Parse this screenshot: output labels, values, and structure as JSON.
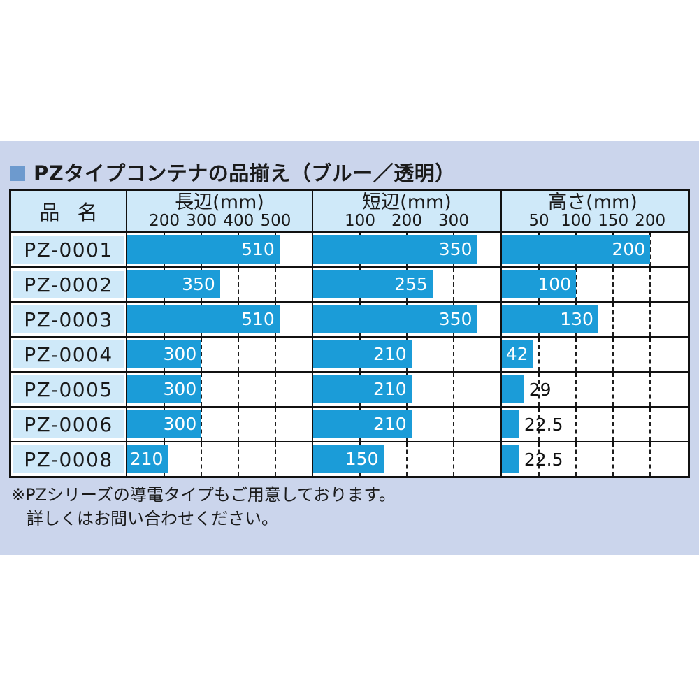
{
  "title": "PZタイプコンテナの品揃え（ブルー／透明）",
  "colors": {
    "panel_background": "#cbd5ec",
    "cell_blue": "#cfe9f9",
    "bar_blue": "#1b9cd8",
    "bullet_blue": "#6d9ace",
    "border_black": "#111111"
  },
  "table": {
    "name_header": "品 名",
    "columns": [
      {
        "label": "長辺(mm)",
        "ticks": [
          200,
          300,
          400,
          500
        ]
      },
      {
        "label": "短辺(mm)",
        "ticks": [
          100,
          200,
          300
        ]
      },
      {
        "label": "高さ(mm)",
        "ticks": [
          50,
          100,
          150,
          200
        ]
      }
    ],
    "rows": [
      {
        "name": "PZ-0001",
        "values": [
          510,
          350,
          200
        ]
      },
      {
        "name": "PZ-0002",
        "values": [
          350,
          255,
          100
        ]
      },
      {
        "name": "PZ-0003",
        "values": [
          510,
          350,
          130
        ]
      },
      {
        "name": "PZ-0004",
        "values": [
          300,
          210,
          42
        ]
      },
      {
        "name": "PZ-0005",
        "values": [
          300,
          210,
          29
        ]
      },
      {
        "name": "PZ-0006",
        "values": [
          300,
          210,
          22.5
        ]
      },
      {
        "name": "PZ-0008",
        "values": [
          210,
          150,
          22.5
        ]
      }
    ]
  },
  "footnote": [
    "※PZシリーズの導電タイプもご用意しております。",
    "詳しくはお問い合わせください。"
  ],
  "chart_data": {
    "type": "bar",
    "title": "PZタイプコンテナの品揃え（ブルー／透明）",
    "categories": [
      "PZ-0001",
      "PZ-0002",
      "PZ-0003",
      "PZ-0004",
      "PZ-0005",
      "PZ-0006",
      "PZ-0008"
    ],
    "series": [
      {
        "name": "長辺(mm)",
        "values": [
          510,
          350,
          510,
          300,
          300,
          300,
          210
        ]
      },
      {
        "name": "短辺(mm)",
        "values": [
          350,
          255,
          350,
          210,
          210,
          210,
          150
        ]
      },
      {
        "name": "高さ(mm)",
        "values": [
          200,
          100,
          130,
          42,
          29,
          22.5,
          22.5
        ]
      }
    ],
    "axis_ticks": {
      "長辺(mm)": [
        200,
        300,
        400,
        500
      ],
      "短辺(mm)": [
        100,
        200,
        300
      ],
      "高さ(mm)": [
        50,
        100,
        150,
        200
      ]
    },
    "axis_ranges": {
      "長辺(mm)": [
        100,
        597
      ],
      "短辺(mm)": [
        0,
        400
      ],
      "高さ(mm)": [
        0,
        245
      ]
    },
    "orientation": "horizontal",
    "grid": "dashed-vertical",
    "bar_color": "#1b9cd8"
  }
}
